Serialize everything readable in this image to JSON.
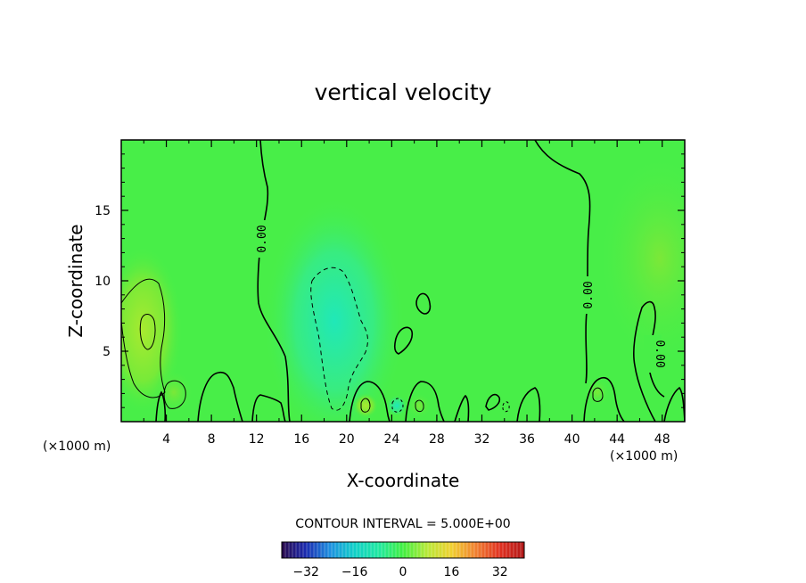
{
  "chart_data": {
    "type": "heatmap",
    "title": "vertical velocity",
    "xlabel": "X-coordinate",
    "ylabel": "Z-coordinate",
    "x_unit": "(×1000 m)",
    "x_unit_right": "(×1000 m)",
    "xlim": [
      0,
      50
    ],
    "ylim": [
      0,
      20
    ],
    "x_ticks": [
      4,
      8,
      12,
      16,
      20,
      24,
      28,
      32,
      36,
      40,
      44,
      48
    ],
    "y_ticks": [
      5,
      10,
      15
    ],
    "contour_interval_text": "CONTOUR INTERVAL = 5.000E+00",
    "contour_zero_label": "0.00",
    "colorbar": {
      "range": [
        -40,
        40
      ],
      "ticks": [
        -32,
        -16,
        0,
        16,
        32
      ],
      "colors": [
        "#2a0a4a",
        "#1a2ab0",
        "#1e90e0",
        "#10d0c8",
        "#20e8a0",
        "#40ee40",
        "#b8e838",
        "#f0d030",
        "#f08030",
        "#e03020",
        "#b01818"
      ]
    },
    "field_description": "weak velocity field near 0; slight negative (cyan) centered near x=19, z=6; slight positive (yellow) near x=2, z=7 and x=48, z=12"
  }
}
